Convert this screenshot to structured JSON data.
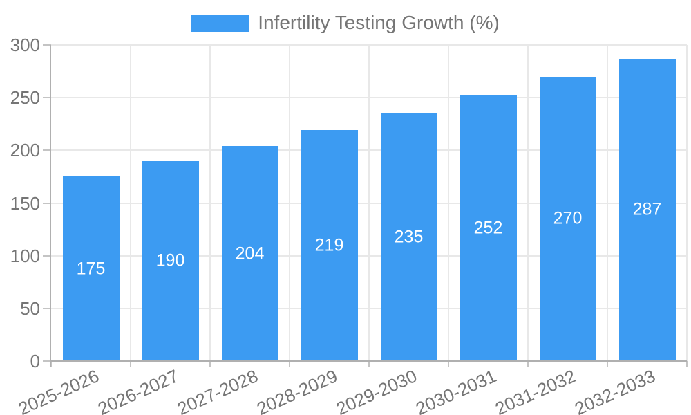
{
  "chart_data": {
    "type": "bar",
    "legend_label": "Infertility Testing Growth (%)",
    "legend_position": "top",
    "categories": [
      "2025-2026",
      "2026-2027",
      "2027-2028",
      "2028-2029",
      "2029-2030",
      "2030-2031",
      "2031-2032",
      "2032-2033"
    ],
    "series": [
      {
        "name": "Infertility Testing Growth (%)",
        "values": [
          175,
          190,
          204,
          219,
          235,
          252,
          270,
          287
        ]
      }
    ],
    "data_labels_shown": true,
    "ylim": [
      0,
      300
    ],
    "yticks": [
      0,
      50,
      100,
      150,
      200,
      250,
      300
    ],
    "grid": true,
    "x_label_rotation_deg": -24,
    "colors": {
      "bar": "#3c9bf2",
      "value_label": "#ffffff",
      "axis_text": "#757575",
      "gridline": "#e8e8e8",
      "axis_line": "#b0b0b0",
      "tick": "#c4c4c4"
    }
  }
}
